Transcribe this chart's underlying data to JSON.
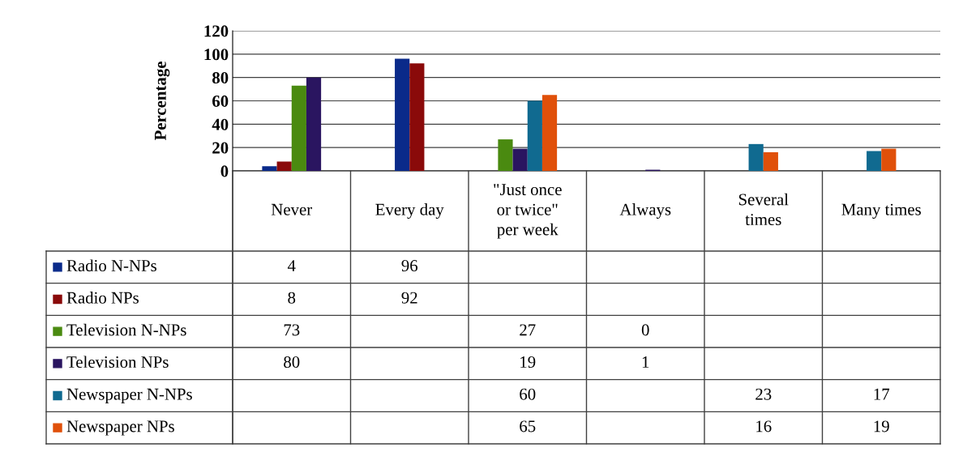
{
  "chart_data": {
    "type": "bar",
    "ylabel": "Percentage",
    "categories": [
      "Never",
      "Every day",
      "\"Just once or twice\" per week",
      "Always",
      "Several times",
      "Many times"
    ],
    "series": [
      {
        "name": "Radio N-NPs",
        "color": "#0a2a8a",
        "values": [
          4,
          96,
          null,
          null,
          null,
          null
        ]
      },
      {
        "name": "Radio NPs",
        "color": "#8a0a0a",
        "values": [
          8,
          92,
          null,
          null,
          null,
          null
        ]
      },
      {
        "name": "Television N-NPs",
        "color": "#4a8a10",
        "values": [
          73,
          null,
          27,
          0,
          null,
          null
        ]
      },
      {
        "name": "Television NPs",
        "color": "#2a1560",
        "values": [
          80,
          null,
          19,
          1,
          null,
          null
        ]
      },
      {
        "name": "Newspaper N-NPs",
        "color": "#106a90",
        "values": [
          null,
          null,
          60,
          null,
          23,
          17
        ]
      },
      {
        "name": "Newspaper NPs",
        "color": "#e0500a",
        "values": [
          null,
          null,
          65,
          null,
          16,
          19
        ]
      }
    ],
    "ylim": [
      0,
      120
    ],
    "yticks": [
      0,
      20,
      40,
      60,
      80,
      100,
      120
    ],
    "grid": "y",
    "data_labels": true,
    "legend": "bottom left"
  }
}
